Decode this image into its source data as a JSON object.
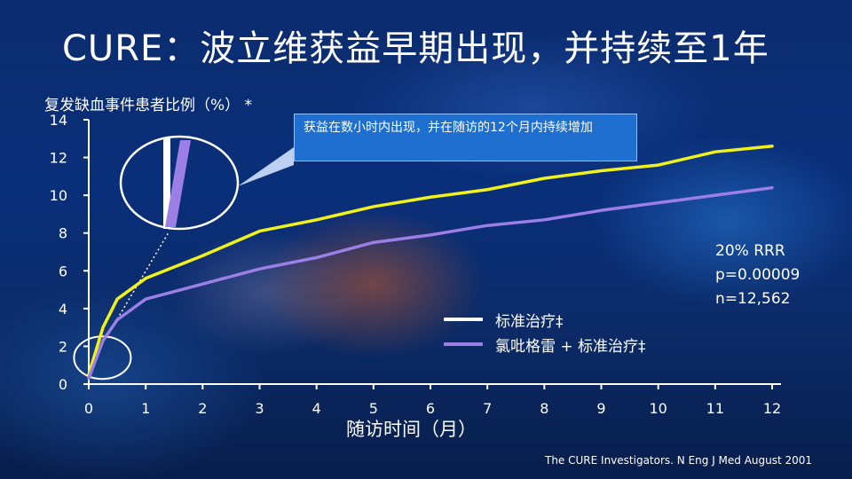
{
  "slide": {
    "title": "CURE：波立维获益早期出现，并持续至1年",
    "ylabel": "复发缺血事件患者比例（%） *",
    "xlabel": "随访时间（月）",
    "callout": "获益在数小时内出现，并在随访的12个月内持续增加",
    "stats": [
      "20% RRR",
      "p=0.00009",
      "n=12,562"
    ],
    "citation": "The CURE Investigators. N Eng J Med August 2001"
  },
  "colors": {
    "series_standard": "#ffffff",
    "series_clopidogrel": "#9b7fe6",
    "standard_curve": "#f2f21a",
    "axes": "#ffffff",
    "callout_bg": "#1e6fd0"
  },
  "chart_data": {
    "type": "line",
    "title": "",
    "xlabel": "随访时间（月）",
    "ylabel": "复发缺血事件患者比例（%） *",
    "xlim": [
      0,
      12
    ],
    "ylim": [
      0,
      14
    ],
    "xticks": [
      0,
      1,
      2,
      3,
      4,
      5,
      6,
      7,
      8,
      9,
      10,
      11,
      12
    ],
    "yticks": [
      0,
      2,
      4,
      6,
      8,
      10,
      12,
      14
    ],
    "series": [
      {
        "name": "标准治疗‡",
        "x": [
          0,
          0.25,
          0.5,
          1,
          2,
          3,
          4,
          5,
          6,
          7,
          8,
          9,
          10,
          11,
          12
        ],
        "y": [
          0.5,
          3,
          4.5,
          5.6,
          6.8,
          8.1,
          8.7,
          9.4,
          9.9,
          10.3,
          10.9,
          11.3,
          11.6,
          12.3,
          12.6
        ]
      },
      {
        "name": "氯吡格雷 + 标准治疗‡",
        "x": [
          0,
          0.25,
          0.5,
          1,
          2,
          3,
          4,
          5,
          6,
          7,
          8,
          9,
          10,
          11,
          12
        ],
        "y": [
          0.3,
          2.3,
          3.4,
          4.5,
          5.3,
          6.1,
          6.7,
          7.5,
          7.9,
          8.4,
          8.7,
          9.2,
          9.6,
          10.0,
          10.4
        ]
      }
    ],
    "legend": "center-right",
    "grid": false
  }
}
